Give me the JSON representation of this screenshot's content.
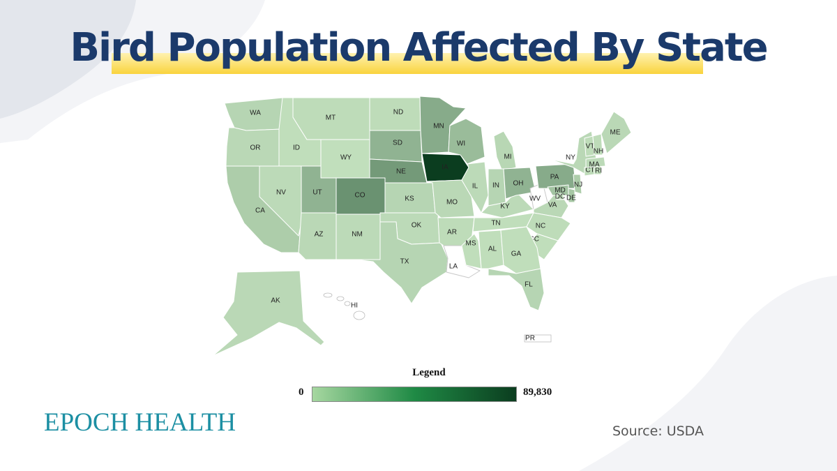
{
  "title": "Bird Population Affected By State",
  "legend": {
    "title": "Legend",
    "min_label": "0",
    "max_label": "89,830",
    "color_min": "#a6d7a0",
    "color_mid": "#1f8a45",
    "color_max": "#0b3d1f"
  },
  "brand": "EPOCH HEALTH",
  "source": "Source: USDA",
  "colors": {
    "title": "#1b3a6b",
    "highlight": "#f9d33d",
    "brand": "#1c8fa3",
    "state_low": "#c9e6c3",
    "state_border": "#ffffff",
    "no_data": "#ffffff"
  },
  "states": [
    {
      "abbr": "WA",
      "intensity": 0.1
    },
    {
      "abbr": "OR",
      "intensity": 0.08
    },
    {
      "abbr": "CA",
      "intensity": 0.15
    },
    {
      "abbr": "ID",
      "intensity": 0.05
    },
    {
      "abbr": "NV",
      "intensity": 0.07
    },
    {
      "abbr": "MT",
      "intensity": 0.06
    },
    {
      "abbr": "WY",
      "intensity": 0.04
    },
    {
      "abbr": "UT",
      "intensity": 0.3
    },
    {
      "abbr": "CO",
      "intensity": 0.5
    },
    {
      "abbr": "AZ",
      "intensity": 0.08
    },
    {
      "abbr": "NM",
      "intensity": 0.07
    },
    {
      "abbr": "ND",
      "intensity": 0.06
    },
    {
      "abbr": "SD",
      "intensity": 0.3
    },
    {
      "abbr": "NE",
      "intensity": 0.45
    },
    {
      "abbr": "KS",
      "intensity": 0.1
    },
    {
      "abbr": "OK",
      "intensity": 0.07
    },
    {
      "abbr": "TX",
      "intensity": 0.1
    },
    {
      "abbr": "MN",
      "intensity": 0.35
    },
    {
      "abbr": "IA",
      "intensity": 1.0
    },
    {
      "abbr": "MO",
      "intensity": 0.08
    },
    {
      "abbr": "AR",
      "intensity": 0.06
    },
    {
      "abbr": "LA",
      "intensity": 0.0
    },
    {
      "abbr": "WI",
      "intensity": 0.25
    },
    {
      "abbr": "IL",
      "intensity": 0.07
    },
    {
      "abbr": "MS",
      "intensity": 0.05
    },
    {
      "abbr": "MI",
      "intensity": 0.09
    },
    {
      "abbr": "IN",
      "intensity": 0.1
    },
    {
      "abbr": "KY",
      "intensity": 0.07
    },
    {
      "abbr": "TN",
      "intensity": 0.05
    },
    {
      "abbr": "AL",
      "intensity": 0.05
    },
    {
      "abbr": "OH",
      "intensity": 0.3
    },
    {
      "abbr": "WV",
      "intensity": 0.0
    },
    {
      "abbr": "VA",
      "intensity": 0.08
    },
    {
      "abbr": "NC",
      "intensity": 0.06
    },
    {
      "abbr": "SC",
      "intensity": 0.05
    },
    {
      "abbr": "GA",
      "intensity": 0.05
    },
    {
      "abbr": "FL",
      "intensity": 0.1
    },
    {
      "abbr": "PA",
      "intensity": 0.35
    },
    {
      "abbr": "NY",
      "intensity": 0.08
    },
    {
      "abbr": "NJ",
      "intensity": 0.15
    },
    {
      "abbr": "MD",
      "intensity": 0.2
    },
    {
      "abbr": "DE",
      "intensity": 0.18
    },
    {
      "abbr": "DC",
      "intensity": 0.05
    },
    {
      "abbr": "CT",
      "intensity": 0.06
    },
    {
      "abbr": "RI",
      "intensity": 0.05
    },
    {
      "abbr": "MA",
      "intensity": 0.07
    },
    {
      "abbr": "VT",
      "intensity": 0.06
    },
    {
      "abbr": "NH",
      "intensity": 0.06
    },
    {
      "abbr": "ME",
      "intensity": 0.08
    },
    {
      "abbr": "AK",
      "intensity": 0.08
    },
    {
      "abbr": "HI",
      "intensity": 0.0
    },
    {
      "abbr": "PR",
      "intensity": 0.0
    }
  ]
}
